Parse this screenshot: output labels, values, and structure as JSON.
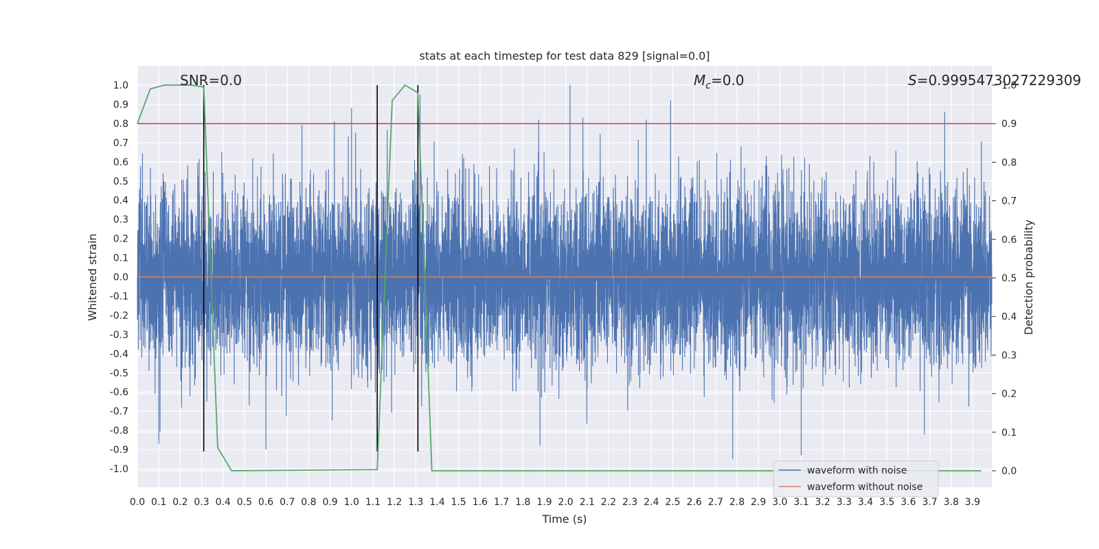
{
  "chart_data": {
    "type": "line",
    "title": "stats at each timestep for test data 829 [signal=0.0]",
    "xlabel": "Time (s)",
    "ylabel_left": "Whitened strain",
    "ylabel_right": "Detection probability",
    "xlim": [
      0.0,
      3.99
    ],
    "ylim_left": [
      -1.0,
      1.0
    ],
    "ylim_right": [
      -0.05,
      1.05
    ],
    "x_ticks": [
      "0.0",
      "0.1",
      "0.2",
      "0.3",
      "0.4",
      "0.5",
      "0.6",
      "0.7",
      "0.8",
      "0.9",
      "1.0",
      "1.1",
      "1.2",
      "1.3",
      "1.4",
      "1.5",
      "1.6",
      "1.7",
      "1.8",
      "1.9",
      "2.0",
      "2.1",
      "2.2",
      "2.3",
      "2.4",
      "2.5",
      "2.6",
      "2.7",
      "2.8",
      "2.9",
      "3.0",
      "3.1",
      "3.2",
      "3.3",
      "3.4",
      "3.5",
      "3.6",
      "3.7",
      "3.8",
      "3.9"
    ],
    "y_ticks_left": [
      "1.0",
      "0.9",
      "0.8",
      "0.7",
      "0.6",
      "0.5",
      "0.4",
      "0.3",
      "0.2",
      "0.1",
      "0.0",
      "-0.1",
      "-0.2",
      "-0.3",
      "-0.4",
      "-0.5",
      "-0.6",
      "-0.7",
      "-0.8",
      "-0.9",
      "-1.0"
    ],
    "y_ticks_right": [
      "1.0",
      "0.9",
      "0.8",
      "0.7",
      "0.6",
      "0.5",
      "0.4",
      "0.3",
      "0.2",
      "0.1",
      "0.0"
    ],
    "annotations": {
      "snr": "SNR=0.0",
      "mc_symbol": "M",
      "mc_sub": "c",
      "mc_value": "=0.0",
      "s_symbol": "S",
      "s_value": "=0.9995473027229309"
    },
    "legend": {
      "location": "lower-right",
      "entries": [
        {
          "label": "waveform with noise",
          "color": "#4c72b0"
        },
        {
          "label": "waveform without noise",
          "color": "#dd8452"
        }
      ]
    },
    "series": [
      {
        "name": "waveform with noise",
        "color": "#4c72b0",
        "axis": "left",
        "kind": "noise",
        "sample_rate_hz": 2048,
        "envelope_abs": 0.45,
        "spike_peaks": [
          {
            "x": 2.02,
            "y": 1.0
          },
          {
            "x": 2.49,
            "y": 0.92
          },
          {
            "x": 3.77,
            "y": 0.86
          },
          {
            "x": 1.32,
            "y": 0.95
          },
          {
            "x": 1.0,
            "y": 0.88
          },
          {
            "x": 2.08,
            "y": 0.83
          },
          {
            "x": 0.92,
            "y": 0.81
          },
          {
            "x": 2.78,
            "y": -0.95
          },
          {
            "x": 3.1,
            "y": -0.93
          },
          {
            "x": 1.88,
            "y": -0.88
          },
          {
            "x": 0.1,
            "y": -0.87
          },
          {
            "x": 0.6,
            "y": -0.9
          }
        ]
      },
      {
        "name": "waveform without noise",
        "color": "#dd8452",
        "axis": "left",
        "x": [
          0.0,
          3.99
        ],
        "y": [
          0.0,
          0.0
        ]
      },
      {
        "name": "detection probability",
        "color": "#55a868",
        "axis": "right",
        "x": [
          0.0,
          0.06,
          0.125,
          0.19,
          0.25,
          0.31,
          0.375,
          0.44,
          1.12,
          1.19,
          1.25,
          1.31,
          1.375,
          3.94
        ],
        "y": [
          0.9,
          0.99,
          1.0,
          1.0,
          1.0,
          0.995,
          0.06,
          0.0,
          0.003,
          0.96,
          1.0,
          0.98,
          0.0,
          0.0
        ]
      }
    ],
    "threshold": {
      "axis": "right",
      "value": 0.9,
      "color": "#c44e52"
    },
    "vlines": [
      {
        "x": 0.31,
        "ymin": -0.91,
        "ymax": 1.0
      },
      {
        "x": 1.12,
        "ymin": -0.91,
        "ymax": 1.0
      },
      {
        "x": 1.31,
        "ymin": -0.91,
        "ymax": 1.0
      }
    ]
  }
}
